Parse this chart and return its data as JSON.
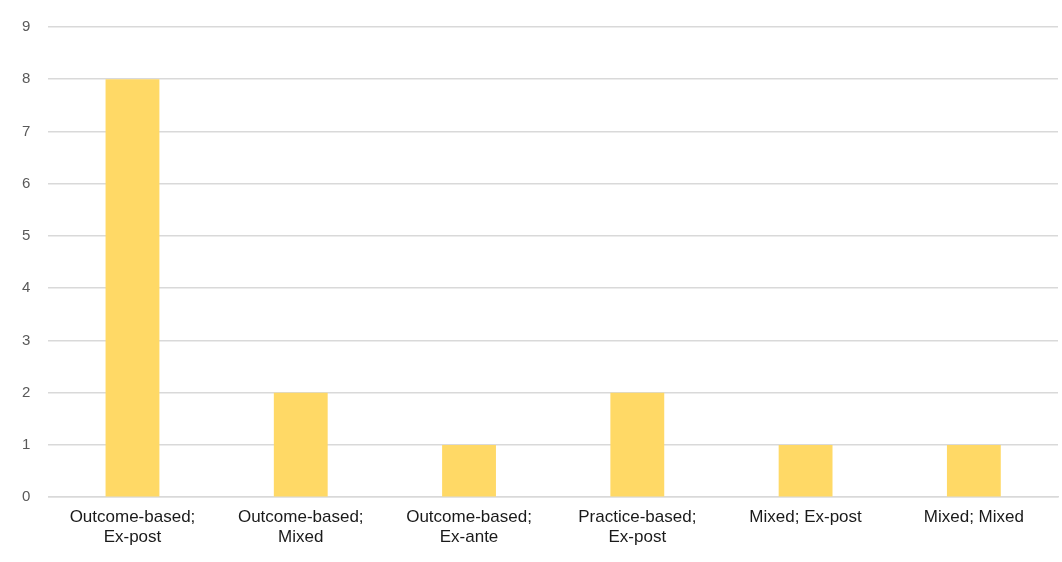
{
  "chart_data": {
    "type": "bar",
    "categories": [
      "Outcome-based; Ex-post",
      "Outcome-based; Mixed",
      "Outcome-based; Ex-ante",
      "Practice-based; Ex-post",
      "Mixed; Ex-post",
      "Mixed; Mixed"
    ],
    "values": [
      8,
      2,
      1,
      2,
      1,
      1
    ],
    "color": "#ffd966",
    "ylim": [
      0,
      9
    ],
    "yticks": [
      0,
      1,
      2,
      3,
      4,
      5,
      6,
      7,
      8,
      9
    ],
    "grid": "y",
    "legend": false
  }
}
